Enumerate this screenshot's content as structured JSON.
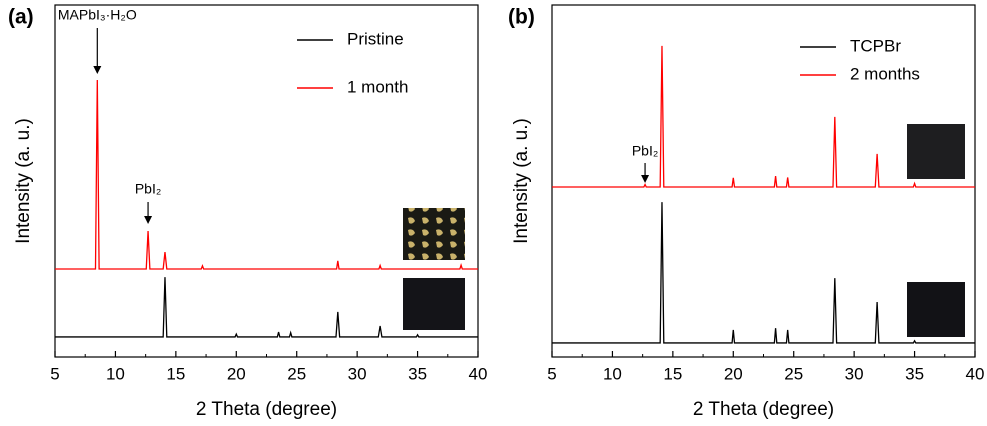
{
  "chart_data": [
    {
      "type": "line",
      "panel_label": "(a)",
      "xlabel": "2 Theta (degree)",
      "ylabel": "Intensity (a. u.)",
      "xlim": [
        5,
        40
      ],
      "xticks": [
        5,
        10,
        15,
        20,
        25,
        30,
        35,
        40
      ],
      "ylim": [
        0,
        100
      ],
      "legend": "upper right",
      "series": [
        {
          "name": "Pristine",
          "color": "#000000",
          "x": [
            5,
            13.95,
            14.1,
            14.25,
            19.9,
            20,
            20.1,
            23.4,
            23.5,
            23.6,
            24.4,
            24.5,
            24.6,
            28.25,
            28.4,
            28.55,
            31.75,
            31.9,
            32.05,
            34.9,
            35,
            35.1,
            40
          ],
          "values": [
            5.7,
            5.7,
            22.7,
            5.7,
            5.7,
            6.5,
            5.7,
            5.7,
            7.1,
            5.7,
            5.7,
            6.9,
            5.7,
            5.7,
            12.8,
            5.7,
            5.7,
            8.8,
            5.7,
            5.7,
            6.3,
            5.7,
            5.7
          ]
        },
        {
          "name": "1 month",
          "color": "#ff0000",
          "x": [
            5,
            8.35,
            8.5,
            8.65,
            12.55,
            12.7,
            12.85,
            13.95,
            14.1,
            14.25,
            17.1,
            17.2,
            17.3,
            28.3,
            28.4,
            28.5,
            31.8,
            31.9,
            32,
            38.5,
            38.6,
            38.7,
            40
          ],
          "values": [
            25,
            25,
            78.7,
            25,
            25,
            35.8,
            25,
            25,
            29.8,
            25,
            25,
            25.9,
            25,
            25,
            27.3,
            25,
            25,
            26,
            25,
            25,
            26.1,
            25,
            25
          ]
        }
      ],
      "annotations": [
        {
          "text": "MAPbI₃·H₂O",
          "x": 8.5
        },
        {
          "text": "PbI₂",
          "x": 12.7
        }
      ]
    },
    {
      "type": "line",
      "panel_label": "(b)",
      "xlabel": "2 Theta (degree)",
      "ylabel": "Intensity (a. u.)",
      "xlim": [
        5,
        40
      ],
      "xticks": [
        5,
        10,
        15,
        20,
        25,
        30,
        35,
        40
      ],
      "ylim": [
        0,
        100
      ],
      "legend": "upper right",
      "series": [
        {
          "name": "TCPBr",
          "color": "#000000",
          "x": [
            5,
            13.95,
            14.1,
            14.25,
            19.9,
            20,
            20.1,
            23.4,
            23.5,
            23.6,
            24.4,
            24.5,
            24.6,
            28.25,
            28.4,
            28.55,
            31.75,
            31.9,
            32.05,
            34.9,
            35,
            35.1,
            40
          ],
          "values": [
            4,
            4,
            44,
            4,
            4,
            7.7,
            4,
            4,
            8.2,
            4,
            4,
            7.7,
            4,
            4,
            22.4,
            4,
            4,
            15.6,
            4,
            4,
            4.6,
            4,
            4
          ]
        },
        {
          "name": "2 months",
          "color": "#ff0000",
          "x": [
            5,
            12.6,
            12.7,
            12.8,
            13.95,
            14.1,
            14.25,
            19.9,
            20,
            20.1,
            23.4,
            23.5,
            23.6,
            24.4,
            24.5,
            24.6,
            28.25,
            28.4,
            28.55,
            31.75,
            31.9,
            32.05,
            34.9,
            35,
            35.1,
            40
          ],
          "values": [
            48.3,
            48.3,
            49,
            48.3,
            48.3,
            88.4,
            48.3,
            48.3,
            50.9,
            48.3,
            48.3,
            51.4,
            48.3,
            48.3,
            51,
            48.3,
            48.3,
            68.2,
            48.3,
            48.3,
            57.7,
            48.3,
            48.3,
            49.3,
            48.3,
            48.3
          ]
        }
      ],
      "annotations": [
        {
          "text": "PbI₂",
          "x": 12.7
        }
      ]
    }
  ]
}
